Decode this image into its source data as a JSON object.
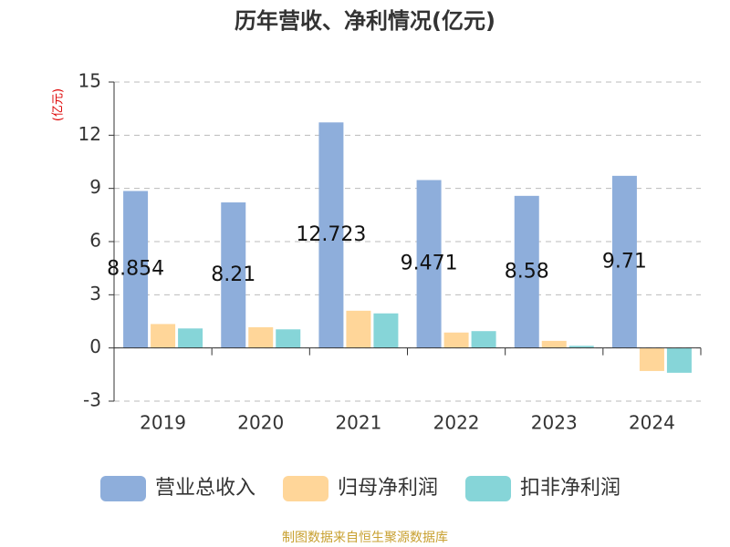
{
  "chart_data": {
    "type": "bar",
    "title": "历年营收、净利情况(亿元)",
    "y_unit": "(亿元)",
    "source": "制图数据来自恒生聚源数据库",
    "categories": [
      "2019",
      "2020",
      "2021",
      "2022",
      "2023",
      "2024"
    ],
    "series": [
      {
        "name": "营业总收入",
        "color": "#8eaedb",
        "values": [
          8.854,
          8.21,
          12.723,
          9.471,
          8.58,
          9.71
        ],
        "show_values": true
      },
      {
        "name": "归母净利润",
        "color": "#ffd699",
        "values": [
          1.35,
          1.17,
          2.1,
          0.87,
          0.4,
          -1.3
        ],
        "show_values": false
      },
      {
        "name": "扣非净利润",
        "color": "#86d5d8",
        "values": [
          1.1,
          1.05,
          1.95,
          0.95,
          0.12,
          -1.4
        ],
        "show_values": false
      }
    ],
    "ylim": [
      -3,
      15
    ],
    "yticks": [
      -3,
      0,
      3,
      6,
      9,
      12,
      15
    ],
    "grid": true
  }
}
